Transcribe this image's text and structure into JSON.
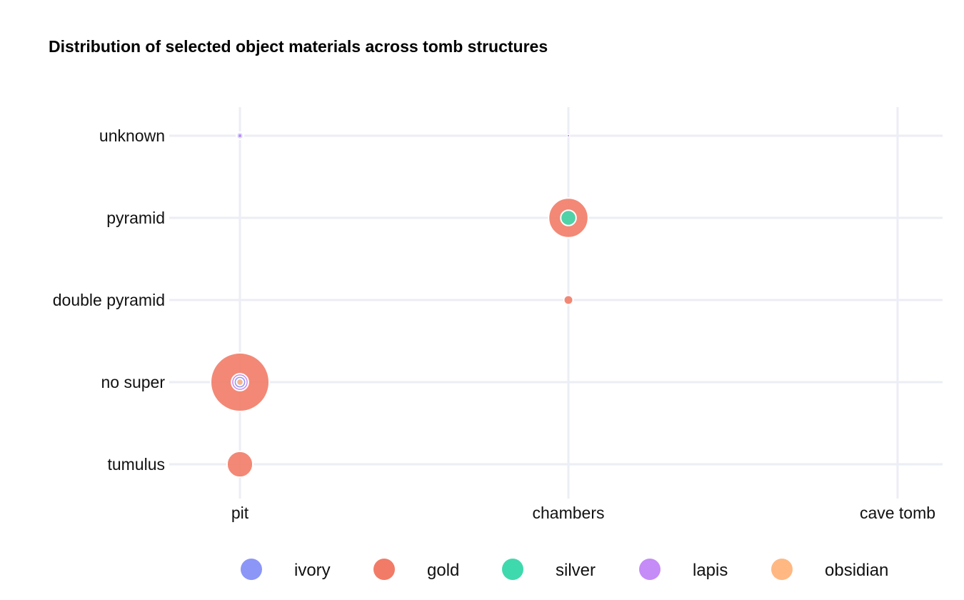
{
  "chart_data": {
    "type": "scatter",
    "title": "Distribution of selected object materials across tomb structures",
    "xlabel": "",
    "ylabel": "",
    "x_categories": [
      "pit",
      "chambers",
      "cave tomb"
    ],
    "y_categories": [
      "tumulus",
      "no super",
      "double pyramid",
      "pyramid",
      "unknown"
    ],
    "size_note": "bubble area proportional to object count",
    "series": [
      {
        "name": "ivory",
        "color": "#8b96f7",
        "points": [
          {
            "x": "pit",
            "y": "unknown",
            "count": 0.6
          },
          {
            "x": "pit",
            "y": "no super",
            "count": 3
          },
          {
            "x": "chambers",
            "y": "unknown",
            "count": 0.15
          }
        ]
      },
      {
        "name": "gold",
        "color": "#f27b67",
        "points": [
          {
            "x": "pit",
            "y": "no super",
            "count": 72
          },
          {
            "x": "pit",
            "y": "tumulus",
            "count": 14
          },
          {
            "x": "chambers",
            "y": "pyramid",
            "count": 33
          },
          {
            "x": "chambers",
            "y": "double pyramid",
            "count": 1.8
          },
          {
            "x": "chambers",
            "y": "unknown",
            "count": 0.15
          }
        ]
      },
      {
        "name": "silver",
        "color": "#3fd9ae",
        "points": [
          {
            "x": "pit",
            "y": "unknown",
            "count": 1.1
          },
          {
            "x": "chambers",
            "y": "pyramid",
            "count": 5
          },
          {
            "x": "chambers",
            "y": "unknown",
            "count": 0.1
          }
        ]
      },
      {
        "name": "lapis",
        "color": "#c58bf7",
        "points": [
          {
            "x": "pit",
            "y": "unknown",
            "count": 0.3
          },
          {
            "x": "pit",
            "y": "no super",
            "count": 6
          },
          {
            "x": "chambers",
            "y": "unknown",
            "count": 0.1
          }
        ]
      },
      {
        "name": "obsidian",
        "color": "#ffb882",
        "points": [
          {
            "x": "pit",
            "y": "no super",
            "count": 1
          }
        ]
      }
    ],
    "grid": true,
    "legend_position": "bottom"
  }
}
